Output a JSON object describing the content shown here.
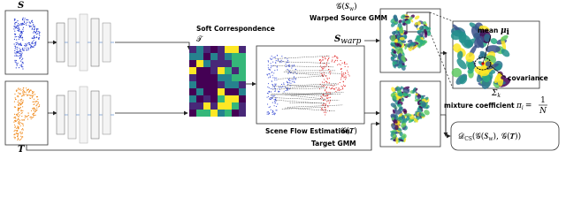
{
  "source": {
    "symbol": "S"
  },
  "target": {
    "symbol": "T"
  },
  "correspondence": {
    "title": "Soft Correspondence",
    "symbol": "𝒯"
  },
  "scene_flow": {
    "label": "Scene Flow Estimation",
    "warped_main": "S",
    "warped_sub": "warp"
  },
  "warped_gmm": {
    "main": "𝒢(𝑺",
    "sub": "w",
    "close": ")",
    "label": "Warped Source GMM"
  },
  "target_gmm": {
    "symbol": "𝒢(𝑻)",
    "label": "Target GMM"
  },
  "zoom": {
    "mean_label": "mean",
    "mean_symbol": "μ",
    "mean_sub": "i",
    "cov_label": "covariance",
    "cov_symbol": "Σ",
    "cov_sub": "k",
    "mix_label": "mixture coefficient",
    "mix_symbol": "π",
    "mix_sub": "i",
    "mix_eq": "=",
    "mix_num": "1",
    "mix_den": "N"
  },
  "loss": {
    "main": "𝒟",
    "sub": "CS",
    "mid": "(𝒢(𝑺",
    "sub2": "w",
    "close": "), 𝒢(𝑻))"
  }
}
